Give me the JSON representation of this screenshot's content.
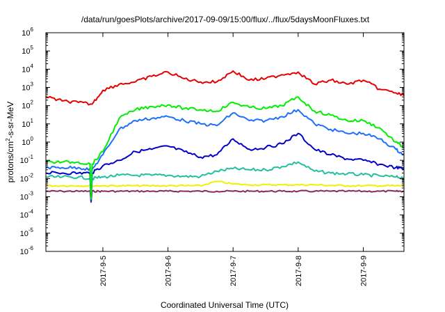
{
  "chart_data": {
    "type": "line",
    "title": "/data/run/goesPlots/archive/2017-09-09/15:00/flux/../flux/5daysMoonFluxes.txt",
    "xlabel": "Coordinated Universal Time (UTC)",
    "ylabel": "protons/cm²-s-sr-MeV",
    "ylabel_main": "protons/cm",
    "ylabel_sup": "2",
    "ylabel_rest": "-s-sr-MeV",
    "yscale": "log",
    "ylim": [
      1e-06,
      1000000.0
    ],
    "y_ticks": [
      {
        "value": 1e-06,
        "base": "10",
        "exp": "-6"
      },
      {
        "value": 1e-05,
        "base": "10",
        "exp": "-5"
      },
      {
        "value": 0.0001,
        "base": "10",
        "exp": "-4"
      },
      {
        "value": 0.001,
        "base": "10",
        "exp": "-3"
      },
      {
        "value": 0.01,
        "base": "10",
        "exp": "-2"
      },
      {
        "value": 0.1,
        "base": "10",
        "exp": "-1"
      },
      {
        "value": 1.0,
        "base": "10",
        "exp": "0"
      },
      {
        "value": 10.0,
        "base": "10",
        "exp": "1"
      },
      {
        "value": 100.0,
        "base": "10",
        "exp": "2"
      },
      {
        "value": 1000.0,
        "base": "10",
        "exp": "3"
      },
      {
        "value": 10000.0,
        "base": "10",
        "exp": "4"
      },
      {
        "value": 100000.0,
        "base": "10",
        "exp": "5"
      },
      {
        "value": 1000000.0,
        "base": "10",
        "exp": "6"
      }
    ],
    "xlim": [
      "2017-09-04T03:00",
      "2017-09-09T15:00"
    ],
    "x_ticks": [
      "2017-9-5",
      "2017-9-6",
      "2017-9-7",
      "2017-9-8",
      "2017-9-9"
    ],
    "grid": false,
    "legend": "none",
    "series": [
      {
        "color": "#e60000",
        "x": [
          "2017-09-04T03:00",
          "2017-09-04T09:00",
          "2017-09-04T15:00",
          "2017-09-04T20:00",
          "2017-09-05T00:00",
          "2017-09-05T06:00",
          "2017-09-05T12:00",
          "2017-09-05T18:00",
          "2017-09-06T00:00",
          "2017-09-06T06:00",
          "2017-09-06T12:00",
          "2017-09-06T18:00",
          "2017-09-07T00:00",
          "2017-09-07T06:00",
          "2017-09-07T12:00",
          "2017-09-07T18:00",
          "2017-09-08T00:00",
          "2017-09-08T06:00",
          "2017-09-08T12:00",
          "2017-09-08T18:00",
          "2017-09-09T00:00",
          "2017-09-09T06:00",
          "2017-09-09T12:00",
          "2017-09-09T15:00"
        ],
        "values": [
          300,
          180,
          150,
          120,
          700,
          1500,
          2000,
          4000,
          7000,
          3000,
          2000,
          2000,
          8000,
          2500,
          3000,
          5000,
          7000,
          1500,
          2500,
          1500,
          2500,
          800,
          500,
          350
        ]
      },
      {
        "color": "#00ee00",
        "x": [
          "2017-09-04T03:00",
          "2017-09-04T09:00",
          "2017-09-04T15:00",
          "2017-09-04T20:00",
          "2017-09-05T00:00",
          "2017-09-05T06:00",
          "2017-09-05T12:00",
          "2017-09-05T18:00",
          "2017-09-06T00:00",
          "2017-09-06T06:00",
          "2017-09-06T12:00",
          "2017-09-06T18:00",
          "2017-09-07T00:00",
          "2017-09-07T06:00",
          "2017-09-07T12:00",
          "2017-09-07T18:00",
          "2017-09-08T00:00",
          "2017-09-08T06:00",
          "2017-09-08T12:00",
          "2017-09-08T18:00",
          "2017-09-09T00:00",
          "2017-09-09T06:00",
          "2017-09-09T12:00",
          "2017-09-09T15:00"
        ],
        "values": [
          0.08,
          0.08,
          0.08,
          0.06,
          0.3,
          20,
          60,
          90,
          110,
          70,
          60,
          50,
          150,
          80,
          70,
          100,
          300,
          50,
          30,
          15,
          15,
          6,
          1,
          0.5
        ]
      },
      {
        "color": "#1e6fff",
        "x": [
          "2017-09-04T03:00",
          "2017-09-04T09:00",
          "2017-09-04T15:00",
          "2017-09-04T20:00",
          "2017-09-05T00:00",
          "2017-09-05T06:00",
          "2017-09-05T12:00",
          "2017-09-05T18:00",
          "2017-09-06T00:00",
          "2017-09-06T06:00",
          "2017-09-06T12:00",
          "2017-09-06T18:00",
          "2017-09-07T00:00",
          "2017-09-07T06:00",
          "2017-09-07T12:00",
          "2017-09-07T18:00",
          "2017-09-08T00:00",
          "2017-09-08T06:00",
          "2017-09-08T12:00",
          "2017-09-08T18:00",
          "2017-09-09T00:00",
          "2017-09-09T06:00",
          "2017-09-09T12:00",
          "2017-09-09T15:00"
        ],
        "values": [
          0.04,
          0.04,
          0.04,
          0.03,
          0.2,
          5,
          15,
          20,
          25,
          15,
          10,
          8,
          40,
          15,
          15,
          25,
          60,
          10,
          5,
          3,
          3,
          1.5,
          0.4,
          0.2
        ]
      },
      {
        "color": "#0000cc",
        "x": [
          "2017-09-04T03:00",
          "2017-09-04T09:00",
          "2017-09-04T15:00",
          "2017-09-04T20:00",
          "2017-09-05T00:00",
          "2017-09-05T06:00",
          "2017-09-05T12:00",
          "2017-09-05T18:00",
          "2017-09-06T00:00",
          "2017-09-06T06:00",
          "2017-09-06T12:00",
          "2017-09-06T18:00",
          "2017-09-07T00:00",
          "2017-09-07T06:00",
          "2017-09-07T12:00",
          "2017-09-07T18:00",
          "2017-09-08T00:00",
          "2017-09-08T06:00",
          "2017-09-08T12:00",
          "2017-09-08T18:00",
          "2017-09-09T00:00",
          "2017-09-09T06:00",
          "2017-09-09T12:00",
          "2017-09-09T15:00"
        ],
        "values": [
          0.02,
          0.02,
          0.02,
          0.02,
          0.05,
          0.1,
          0.3,
          0.4,
          0.6,
          0.3,
          0.15,
          0.2,
          1.5,
          0.4,
          0.5,
          0.8,
          3,
          0.4,
          0.2,
          0.12,
          0.1,
          0.06,
          0.04,
          0.035
        ]
      },
      {
        "color": "#20c0a0",
        "x": [
          "2017-09-04T03:00",
          "2017-09-04T09:00",
          "2017-09-04T15:00",
          "2017-09-04T20:00",
          "2017-09-05T00:00",
          "2017-09-05T06:00",
          "2017-09-05T12:00",
          "2017-09-05T18:00",
          "2017-09-06T00:00",
          "2017-09-06T06:00",
          "2017-09-06T12:00",
          "2017-09-06T18:00",
          "2017-09-07T00:00",
          "2017-09-07T06:00",
          "2017-09-07T12:00",
          "2017-09-07T18:00",
          "2017-09-08T00:00",
          "2017-09-08T06:00",
          "2017-09-08T12:00",
          "2017-09-08T18:00",
          "2017-09-09T00:00",
          "2017-09-09T06:00",
          "2017-09-09T12:00",
          "2017-09-09T15:00"
        ],
        "values": [
          0.012,
          0.012,
          0.012,
          0.01,
          0.012,
          0.015,
          0.015,
          0.015,
          0.015,
          0.013,
          0.013,
          0.025,
          0.035,
          0.03,
          0.03,
          0.045,
          0.08,
          0.025,
          0.02,
          0.018,
          0.016,
          0.014,
          0.012,
          0.011
        ]
      },
      {
        "color": "#f0f000",
        "x": [
          "2017-09-04T03:00",
          "2017-09-04T09:00",
          "2017-09-04T15:00",
          "2017-09-04T20:00",
          "2017-09-05T00:00",
          "2017-09-05T06:00",
          "2017-09-05T12:00",
          "2017-09-05T18:00",
          "2017-09-06T00:00",
          "2017-09-06T06:00",
          "2017-09-06T12:00",
          "2017-09-06T18:00",
          "2017-09-07T00:00",
          "2017-09-07T06:00",
          "2017-09-07T12:00",
          "2017-09-07T18:00",
          "2017-09-08T00:00",
          "2017-09-08T06:00",
          "2017-09-08T12:00",
          "2017-09-08T18:00",
          "2017-09-09T00:00",
          "2017-09-09T06:00",
          "2017-09-09T12:00",
          "2017-09-09T15:00"
        ],
        "values": [
          0.004,
          0.004,
          0.004,
          0.004,
          0.004,
          0.004,
          0.004,
          0.004,
          0.004,
          0.004,
          0.004,
          0.007,
          0.005,
          0.0045,
          0.0045,
          0.0045,
          0.0045,
          0.0045,
          0.0042,
          0.004,
          0.004,
          0.004,
          0.004,
          0.004
        ]
      },
      {
        "color": "#8b2a5a",
        "x": [
          "2017-09-04T03:00",
          "2017-09-04T09:00",
          "2017-09-04T15:00",
          "2017-09-04T20:00",
          "2017-09-05T00:00",
          "2017-09-05T06:00",
          "2017-09-05T12:00",
          "2017-09-05T18:00",
          "2017-09-06T00:00",
          "2017-09-06T06:00",
          "2017-09-06T12:00",
          "2017-09-06T18:00",
          "2017-09-07T00:00",
          "2017-09-07T06:00",
          "2017-09-07T12:00",
          "2017-09-07T18:00",
          "2017-09-08T00:00",
          "2017-09-08T06:00",
          "2017-09-08T12:00",
          "2017-09-08T18:00",
          "2017-09-09T00:00",
          "2017-09-09T06:00",
          "2017-09-09T12:00",
          "2017-09-09T15:00"
        ],
        "values": [
          0.002,
          0.002,
          0.002,
          0.002,
          0.002,
          0.002,
          0.002,
          0.002,
          0.002,
          0.002,
          0.002,
          0.002,
          0.002,
          0.002,
          0.002,
          0.002,
          0.002,
          0.002,
          0.002,
          0.002,
          0.002,
          0.002,
          0.002,
          0.002
        ]
      }
    ],
    "dips": [
      {
        "series_index": 1,
        "x": "2017-09-04T19:40",
        "value": 0.0008
      },
      {
        "series_index": 2,
        "x": "2017-09-04T19:40",
        "value": 0.0007
      },
      {
        "series_index": 3,
        "x": "2017-09-04T19:40",
        "value": 0.0006
      },
      {
        "series_index": 4,
        "x": "2017-09-04T19:40",
        "value": 0.0006
      },
      {
        "series_index": 6,
        "x": "2017-09-04T19:40",
        "value": 0.0005
      }
    ]
  }
}
